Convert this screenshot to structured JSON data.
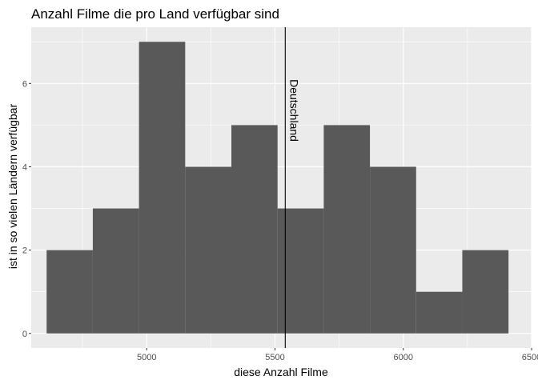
{
  "chart_data": {
    "type": "bar",
    "title": "Anzahl Filme die pro Land verfügbar sind",
    "xlabel": "diese Anzahl Filme",
    "ylabel": "ist in so vielen Ländern verfügbar",
    "xlim": [
      4550,
      6500
    ],
    "ylim": [
      -0.35,
      7.35
    ],
    "x_ticks": [
      5000,
      5500,
      6000,
      6500
    ],
    "y_ticks": [
      0,
      2,
      4,
      6
    ],
    "bins": [
      {
        "x0": 4610,
        "x1": 4790,
        "count": 2
      },
      {
        "x0": 4790,
        "x1": 4970,
        "count": 3
      },
      {
        "x0": 4970,
        "x1": 5150,
        "count": 7
      },
      {
        "x0": 5150,
        "x1": 5330,
        "count": 4
      },
      {
        "x0": 5330,
        "x1": 5510,
        "count": 5
      },
      {
        "x0": 5510,
        "x1": 5690,
        "count": 3
      },
      {
        "x0": 5690,
        "x1": 5870,
        "count": 5
      },
      {
        "x0": 5870,
        "x1": 6050,
        "count": 4
      },
      {
        "x0": 6050,
        "x1": 6230,
        "count": 1
      },
      {
        "x0": 6230,
        "x1": 6410,
        "count": 2
      }
    ],
    "vline": {
      "x": 5540,
      "label": "Deutschland"
    },
    "grid": true,
    "colors": {
      "bar": "#595959",
      "panel": "#ebebeb",
      "grid_major": "#ffffff",
      "vline": "#000000"
    }
  }
}
